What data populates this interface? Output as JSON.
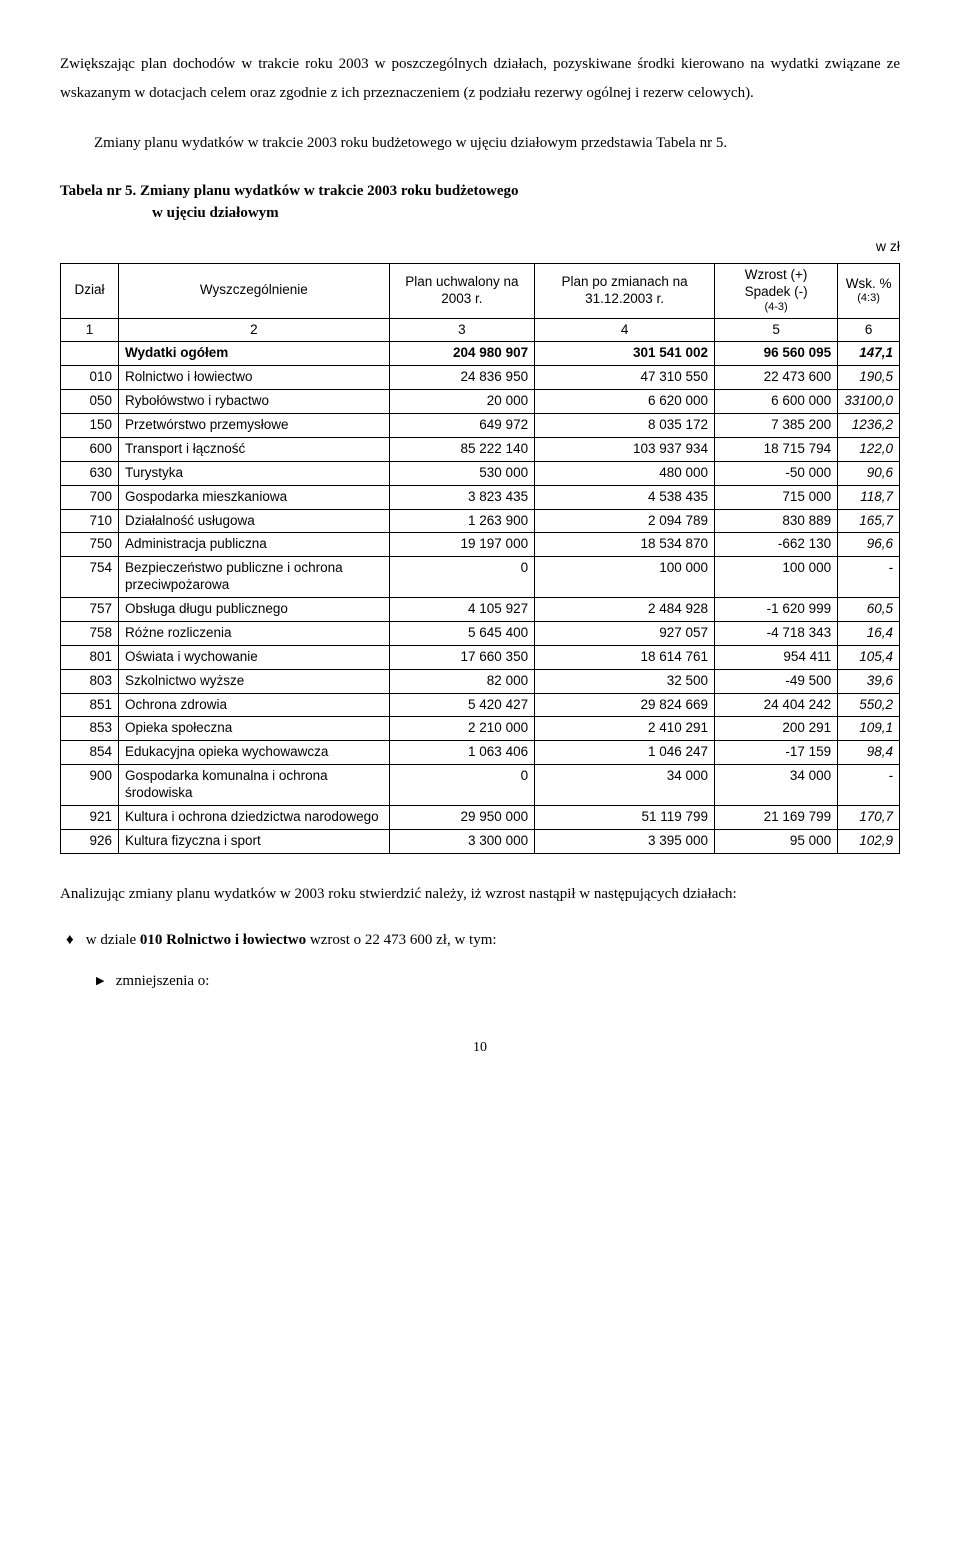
{
  "intro": {
    "p1": "Zwiększając plan dochodów w trakcie roku 2003 w poszczególnych działach, pozyskiwane środki kierowano na wydatki związane ze wskazanym w dotacjach celem oraz zgodnie z ich przeznaczeniem (z podziału rezerwy ogólnej i rezerw celowych).",
    "p2": "Zmiany planu wydatków w trakcie 2003 roku budżetowego w ujęciu działowym przedstawia Tabela nr 5."
  },
  "table_title": {
    "line1": "Tabela nr 5. Zmiany planu wydatków w trakcie 2003 roku budżetowego",
    "line2": "w ujęciu działowym"
  },
  "unit_label": "w zł",
  "table": {
    "headers": {
      "dzial": "Dział",
      "wysz": "Wyszczególnienie",
      "plan_uchw": "Plan uchwalony na 2003 r.",
      "plan_zm": "Plan po zmianach na 31.12.2003 r.",
      "wzrost": "Wzrost (+) Spadek (-)",
      "wzrost_sub": "(4-3)",
      "wsk": "Wsk. %",
      "wsk_sub": "(4:3)"
    },
    "num_row": [
      "1",
      "2",
      "3",
      "4",
      "5",
      "6"
    ],
    "total": {
      "label": "Wydatki ogółem",
      "c3": "204 980 907",
      "c4": "301 541 002",
      "c5": "96 560 095",
      "c6": "147,1"
    },
    "rows": [
      {
        "d": "010",
        "w": "Rolnictwo i łowiectwo",
        "c3": "24 836 950",
        "c4": "47 310 550",
        "c5": "22 473 600",
        "c6": "190,5"
      },
      {
        "d": "050",
        "w": "Rybołówstwo i rybactwo",
        "c3": "20 000",
        "c4": "6 620 000",
        "c5": "6 600 000",
        "c6": "33100,0"
      },
      {
        "d": "150",
        "w": "Przetwórstwo przemysłowe",
        "c3": "649 972",
        "c4": "8 035 172",
        "c5": "7 385 200",
        "c6": "1236,2"
      },
      {
        "d": "600",
        "w": "Transport i łączność",
        "c3": "85 222 140",
        "c4": "103 937 934",
        "c5": "18 715 794",
        "c6": "122,0"
      },
      {
        "d": "630",
        "w": "Turystyka",
        "c3": "530 000",
        "c4": "480 000",
        "c5": "-50 000",
        "c6": "90,6"
      },
      {
        "d": "700",
        "w": "Gospodarka mieszkaniowa",
        "c3": "3 823 435",
        "c4": "4 538 435",
        "c5": "715 000",
        "c6": "118,7"
      },
      {
        "d": "710",
        "w": "Działalność usługowa",
        "c3": "1 263 900",
        "c4": "2 094 789",
        "c5": "830 889",
        "c6": "165,7"
      },
      {
        "d": "750",
        "w": "Administracja publiczna",
        "c3": "19 197 000",
        "c4": "18 534 870",
        "c5": "-662 130",
        "c6": "96,6"
      },
      {
        "d": "754",
        "w": "Bezpieczeństwo publiczne i ochrona przeciwpożarowa",
        "c3": "0",
        "c4": "100 000",
        "c5": "100 000",
        "c6": "-"
      },
      {
        "d": "757",
        "w": "Obsługa długu publicznego",
        "c3": "4 105 927",
        "c4": "2 484 928",
        "c5": "-1 620 999",
        "c6": "60,5"
      },
      {
        "d": "758",
        "w": "Różne rozliczenia",
        "c3": "5 645 400",
        "c4": "927 057",
        "c5": "-4 718 343",
        "c6": "16,4"
      },
      {
        "d": "801",
        "w": "Oświata i wychowanie",
        "c3": "17 660 350",
        "c4": "18 614 761",
        "c5": "954 411",
        "c6": "105,4"
      },
      {
        "d": "803",
        "w": "Szkolnictwo wyższe",
        "c3": "82 000",
        "c4": "32 500",
        "c5": "-49 500",
        "c6": "39,6"
      },
      {
        "d": "851",
        "w": "Ochrona zdrowia",
        "c3": "5 420 427",
        "c4": "29 824 669",
        "c5": "24 404 242",
        "c6": "550,2"
      },
      {
        "d": "853",
        "w": "Opieka społeczna",
        "c3": "2 210 000",
        "c4": "2 410 291",
        "c5": "200 291",
        "c6": "109,1"
      },
      {
        "d": "854",
        "w": "Edukacyjna opieka wychowawcza",
        "c3": "1 063 406",
        "c4": "1 046 247",
        "c5": "-17 159",
        "c6": "98,4"
      },
      {
        "d": "900",
        "w": "Gospodarka komunalna i ochrona środowiska",
        "c3": "0",
        "c4": "34 000",
        "c5": "34 000",
        "c6": "-"
      },
      {
        "d": "921",
        "w": "Kultura i ochrona dziedzictwa narodowego",
        "c3": "29 950 000",
        "c4": "51 119 799",
        "c5": "21 169 799",
        "c6": "170,7"
      },
      {
        "d": "926",
        "w": "Kultura fizyczna i sport",
        "c3": "3 300 000",
        "c4": "3 395 000",
        "c5": "95 000",
        "c6": "102,9"
      }
    ]
  },
  "after": {
    "p1": "Analizując zmiany planu wydatków w 2003 roku stwierdzić należy, iż wzrost nastąpił w następujących działach:",
    "bullet_pre": "w dziale ",
    "bullet_bold": "010 Rolnictwo i łowiectwo",
    "bullet_post": " wzrost o 22 473 600 zł, w tym:",
    "sub_bullet": "zmniejszenia o:"
  },
  "page_number": "10"
}
